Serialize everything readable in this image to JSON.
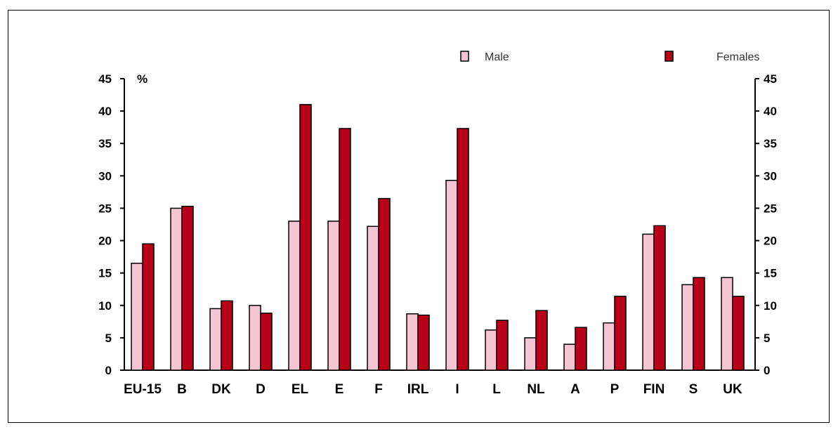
{
  "chart_data": {
    "type": "bar",
    "unit_label": "%",
    "categories": [
      "EU-15",
      "B",
      "DK",
      "D",
      "EL",
      "E",
      "F",
      "IRL",
      "I",
      "L",
      "NL",
      "A",
      "P",
      "FIN",
      "S",
      "UK"
    ],
    "series": [
      {
        "name": "Male",
        "color": "#f4c6d4",
        "values": [
          16.5,
          25,
          9.5,
          10,
          23,
          23,
          22.2,
          8.7,
          29.3,
          6.2,
          5,
          4,
          7.3,
          21,
          13.2,
          14.3
        ]
      },
      {
        "name": "Females",
        "color": "#b80018",
        "values": [
          19.5,
          25.3,
          10.7,
          8.8,
          41,
          37.3,
          26.5,
          8.5,
          37.3,
          7.7,
          9.2,
          6.6,
          11.4,
          22.3,
          14.3,
          11.4
        ]
      }
    ],
    "ylim": [
      0,
      45
    ],
    "yticks": [
      0,
      5,
      10,
      15,
      20,
      25,
      30,
      35,
      40,
      45
    ],
    "legend": {
      "position": "top-right"
    },
    "grid": false
  }
}
